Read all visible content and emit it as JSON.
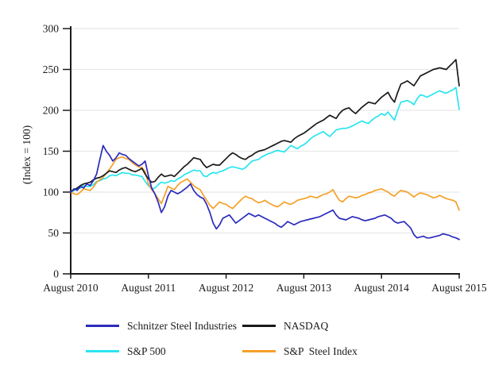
{
  "chart_data": {
    "type": "line",
    "title": "",
    "ylabel": "(Index = 100)",
    "xlabel": "",
    "ylim": [
      0,
      300
    ],
    "yticks": [
      0,
      50,
      100,
      150,
      200,
      250,
      300
    ],
    "x_tick_labels": [
      "August 2010",
      "August 2011",
      "August 2012",
      "August 2013",
      "August 2014",
      "August 2015"
    ],
    "x_start": "August 2010",
    "x_end": "August 2015",
    "x_step_months": 0.5,
    "grid": true,
    "gridline_color": "#e8e8e8",
    "axis_color": "#1a1a1a",
    "legend_position": "bottom",
    "series": [
      {
        "name": "Schnitzer Steel Industries",
        "color": "#2b2bbd",
        "values": [
          100,
          104,
          102,
          107,
          105,
          110,
          108,
          114,
          122,
          140,
          157,
          150,
          145,
          138,
          142,
          148,
          146,
          145,
          141,
          138,
          135,
          132,
          134,
          138,
          120,
          105,
          98,
          88,
          75,
          82,
          95,
          102,
          100,
          98,
          100,
          103,
          106,
          110,
          102,
          97,
          94,
          92,
          85,
          75,
          62,
          55,
          60,
          68,
          70,
          72,
          67,
          62,
          65,
          68,
          71,
          74,
          72,
          70,
          72,
          70,
          68,
          66,
          64,
          62,
          59,
          57,
          60,
          64,
          62,
          60,
          62,
          64,
          65,
          66,
          67,
          68,
          69,
          70,
          72,
          74,
          76,
          78,
          72,
          68,
          67,
          66,
          68,
          70,
          69,
          68,
          66,
          65,
          66,
          67,
          68,
          70,
          71,
          72,
          70,
          68,
          64,
          62,
          63,
          64,
          60,
          56,
          48,
          44,
          45,
          46,
          44,
          44,
          45,
          46,
          47,
          49,
          48,
          47,
          45,
          44,
          42
        ]
      },
      {
        "name": "NASDAQ",
        "color": "#1a1a1a",
        "values": [
          100,
          103,
          105,
          108,
          110,
          111,
          112,
          115,
          117,
          118,
          120,
          123,
          126,
          125,
          124,
          127,
          129,
          130,
          128,
          126,
          125,
          127,
          129,
          122,
          116,
          112,
          113,
          118,
          122,
          119,
          120,
          121,
          119,
          123,
          127,
          131,
          134,
          138,
          142,
          141,
          140,
          134,
          130,
          132,
          134,
          133,
          133,
          137,
          141,
          145,
          148,
          146,
          143,
          141,
          140,
          143,
          145,
          148,
          150,
          151,
          152,
          154,
          156,
          158,
          160,
          162,
          163,
          162,
          161,
          165,
          168,
          170,
          172,
          175,
          178,
          181,
          184,
          186,
          188,
          191,
          194,
          192,
          190,
          196,
          200,
          202,
          203,
          199,
          196,
          200,
          204,
          207,
          210,
          209,
          208,
          212,
          216,
          219,
          222,
          215,
          210,
          222,
          232,
          234,
          236,
          233,
          230,
          236,
          242,
          244,
          246,
          248,
          250,
          251,
          252,
          251,
          250,
          254,
          258,
          262,
          230
        ]
      },
      {
        "name": "S&P 500",
        "color": "#29e5ef",
        "values": [
          100,
          102,
          104,
          105,
          108,
          107,
          107,
          109,
          113,
          114,
          116,
          117,
          120,
          121,
          120,
          122,
          124,
          123,
          123,
          121,
          121,
          120,
          119,
          113,
          108,
          104,
          105,
          109,
          112,
          111,
          112,
          114,
          113,
          116,
          118,
          121,
          123,
          125,
          127,
          126,
          126,
          120,
          119,
          122,
          124,
          123,
          125,
          126,
          128,
          130,
          131,
          130,
          129,
          128,
          130,
          134,
          138,
          139,
          140,
          143,
          145,
          147,
          148,
          150,
          151,
          150,
          149,
          153,
          157,
          155,
          153,
          156,
          158,
          161,
          165,
          168,
          170,
          172,
          174,
          171,
          168,
          172,
          176,
          177,
          178,
          178,
          179,
          181,
          183,
          185,
          187,
          185,
          184,
          188,
          191,
          193,
          196,
          194,
          198,
          193,
          188,
          200,
          210,
          211,
          212,
          210,
          207,
          214,
          219,
          218,
          216,
          218,
          220,
          222,
          224,
          222,
          221,
          223,
          225,
          228,
          201
        ]
      },
      {
        "name": "S&P  Steel Index",
        "color": "#f5a028",
        "values": [
          100,
          98,
          97,
          100,
          104,
          103,
          102,
          106,
          112,
          115,
          118,
          123,
          128,
          134,
          140,
          142,
          143,
          141,
          140,
          136,
          133,
          131,
          130,
          125,
          110,
          103,
          98,
          92,
          86,
          96,
          107,
          105,
          103,
          108,
          112,
          114,
          116,
          112,
          108,
          105,
          103,
          96,
          90,
          84,
          80,
          84,
          88,
          86,
          85,
          82,
          80,
          84,
          88,
          92,
          95,
          93,
          92,
          89,
          87,
          88,
          90,
          87,
          85,
          83,
          82,
          85,
          88,
          86,
          85,
          87,
          90,
          91,
          92,
          93,
          95,
          94,
          93,
          95,
          97,
          98,
          100,
          103,
          96,
          90,
          88,
          92,
          95,
          94,
          93,
          94,
          96,
          97,
          99,
          100,
          102,
          103,
          104,
          102,
          100,
          97,
          95,
          99,
          102,
          101,
          100,
          97,
          94,
          97,
          99,
          98,
          97,
          95,
          93,
          94,
          96,
          94,
          92,
          91,
          90,
          88,
          78
        ]
      }
    ]
  }
}
